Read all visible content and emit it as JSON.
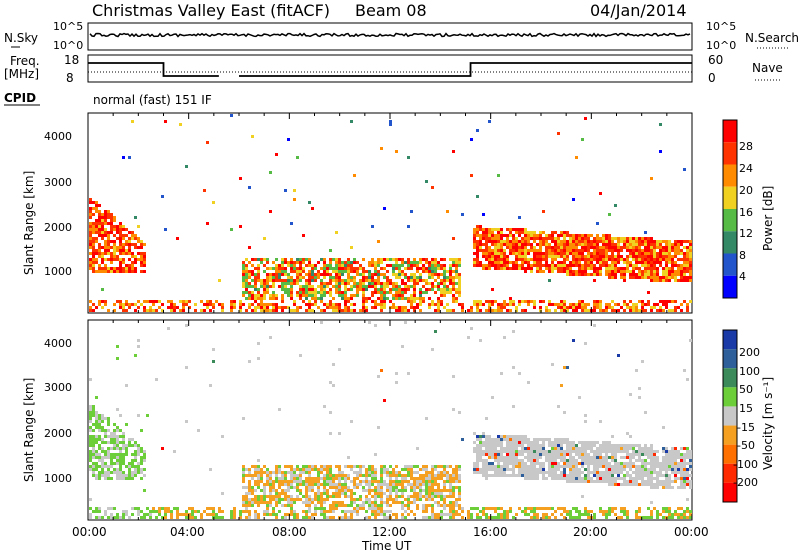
{
  "header": {
    "radar": "Christmas Valley East (fitACF)",
    "beam": "Beam 08",
    "date": "04/Jan/2014"
  },
  "top_panels": {
    "nsky_label": "N.Sky",
    "nsky_ticks": [
      "10^5",
      "10^0"
    ],
    "nsearch_label": "N.Search",
    "nsearch_ticks": [
      "10^5",
      "10^0"
    ],
    "freq_label_1": "Freq.",
    "freq_label_2": "[MHz]",
    "freq_ticks": [
      "18",
      "8"
    ],
    "nave_label": "Nave",
    "nave_ticks": [
      "60",
      "0"
    ],
    "cpid_label": "CPID",
    "cpid_text": "normal (fast) 151 IF"
  },
  "chart_data": [
    {
      "type": "heatmap",
      "title": "Power",
      "ylabel": "Slant Range [km]",
      "xlabel": "Time UT",
      "y_ticks": [
        "1000",
        "2000",
        "3000",
        "4000"
      ],
      "x_ticks": [
        "00:00",
        "04:00",
        "08:00",
        "12:00",
        "16:00",
        "20:00",
        "00:00"
      ],
      "colorbar_label": "Power [dB]",
      "colorbar_ticks": [
        "4",
        "8",
        "12",
        "16",
        "20",
        "24",
        "28"
      ],
      "colors": [
        "#0000ff",
        "#2255cc",
        "#338866",
        "#55bb44",
        "#f0d020",
        "#ff8c00",
        "#ff3300",
        "#ff0000"
      ]
    },
    {
      "type": "heatmap",
      "title": "Velocity",
      "ylabel": "Slant Range [km]",
      "xlabel": "Time UT",
      "y_ticks": [
        "1000",
        "2000",
        "3000",
        "4000"
      ],
      "x_ticks": [
        "00:00",
        "04:00",
        "08:00",
        "12:00",
        "16:00",
        "20:00",
        "00:00"
      ],
      "colorbar_label": "Velocity [m s⁻¹]",
      "colorbar_ticks": [
        "200",
        "100",
        "50",
        "15",
        "-15",
        "-50",
        "-100",
        "-200"
      ],
      "colors": [
        "#1a3aa8",
        "#2f5f9a",
        "#3a8a5a",
        "#6ccf3a",
        "#c8c8c8",
        "#f5a020",
        "#ff7000",
        "#ff2a00",
        "#ff0000"
      ]
    }
  ]
}
